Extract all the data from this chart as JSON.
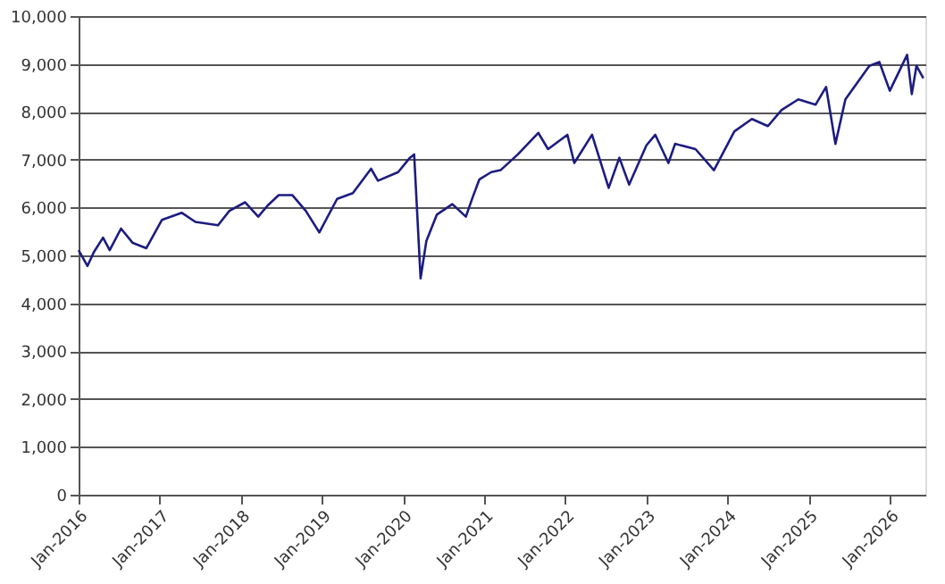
{
  "chart_data": {
    "type": "line",
    "x": [
      "2016-01-01",
      "2016-02-10",
      "2016-03-10",
      "2016-04-20",
      "2016-05-20",
      "2016-07-10",
      "2016-09-01",
      "2016-11-01",
      "2017-01-10",
      "2017-04-10",
      "2017-06-10",
      "2017-09-20",
      "2017-11-10",
      "2018-01-20",
      "2018-03-20",
      "2018-05-01",
      "2018-06-20",
      "2018-08-20",
      "2018-10-20",
      "2018-12-20",
      "2019-03-10",
      "2019-05-20",
      "2019-08-10",
      "2019-09-10",
      "2019-12-10",
      "2020-02-01",
      "2020-02-20",
      "2020-03-20",
      "2020-04-15",
      "2020-06-01",
      "2020-08-10",
      "2020-10-10",
      "2020-11-10",
      "2020-12-10",
      "2021-02-01",
      "2021-03-15",
      "2021-06-01",
      "2021-09-01",
      "2021-10-15",
      "2022-01-10",
      "2022-02-10",
      "2022-05-01",
      "2022-07-15",
      "2022-09-01",
      "2022-10-15",
      "2023-01-01",
      "2023-02-10",
      "2023-04-10",
      "2023-05-10",
      "2023-08-10",
      "2023-11-01",
      "2024-02-01",
      "2024-04-20",
      "2024-07-01",
      "2024-09-01",
      "2024-11-15",
      "2025-02-01",
      "2025-03-20",
      "2025-05-01",
      "2025-06-15",
      "2025-10-01",
      "2025-11-15",
      "2026-01-01",
      "2026-03-20",
      "2026-04-10",
      "2026-05-01",
      "2026-06-01"
    ],
    "series": [
      {
        "color": "#1c1c80",
        "values": [
          5110,
          4780,
          5070,
          5370,
          5110,
          5560,
          5260,
          5150,
          5740,
          5890,
          5700,
          5630,
          5930,
          6110,
          5810,
          6040,
          6260,
          6260,
          5930,
          5480,
          6180,
          6300,
          6810,
          6560,
          6740,
          7040,
          7110,
          4520,
          5300,
          5850,
          6070,
          5810,
          6220,
          6590,
          6740,
          6780,
          7110,
          7560,
          7220,
          7520,
          6930,
          7520,
          6410,
          7040,
          6480,
          7300,
          7520,
          6930,
          7330,
          7220,
          6780,
          7590,
          7850,
          7700,
          8040,
          8260,
          8150,
          8520,
          7330,
          8260,
          8960,
          9040,
          8440,
          9190,
          8370,
          8960,
          8700
        ]
      }
    ],
    "xlim": [
      "2016-01-01",
      "2026-06-10"
    ],
    "xticks": [
      {
        "value": "2016-01-01",
        "label": "Jan-2016"
      },
      {
        "value": "2017-01-01",
        "label": "Jan-2017"
      },
      {
        "value": "2018-01-01",
        "label": "Jan-2018"
      },
      {
        "value": "2019-01-01",
        "label": "Jan-2019"
      },
      {
        "value": "2020-01-01",
        "label": "Jan-2020"
      },
      {
        "value": "2021-01-01",
        "label": "Jan-2021"
      },
      {
        "value": "2022-01-01",
        "label": "Jan-2022"
      },
      {
        "value": "2023-01-01",
        "label": "Jan-2023"
      },
      {
        "value": "2024-01-01",
        "label": "Jan-2024"
      },
      {
        "value": "2025-01-01",
        "label": "Jan-2025"
      },
      {
        "value": "2026-01-01",
        "label": "Jan-2026"
      }
    ],
    "ylim": [
      0,
      10000
    ],
    "yticks": [
      {
        "value": 0,
        "label": "0"
      },
      {
        "value": 1000,
        "label": "1,000"
      },
      {
        "value": 2000,
        "label": "2,000"
      },
      {
        "value": 3000,
        "label": "3,000"
      },
      {
        "value": 4000,
        "label": "4,000"
      },
      {
        "value": 5000,
        "label": "5,000"
      },
      {
        "value": 6000,
        "label": "6,000"
      },
      {
        "value": 7000,
        "label": "7,000"
      },
      {
        "value": 8000,
        "label": "8,000"
      },
      {
        "value": 9000,
        "label": "9,000"
      },
      {
        "value": 10000,
        "label": "10,000"
      }
    ],
    "grid": "y",
    "marker": "none",
    "line_style": "solid"
  }
}
